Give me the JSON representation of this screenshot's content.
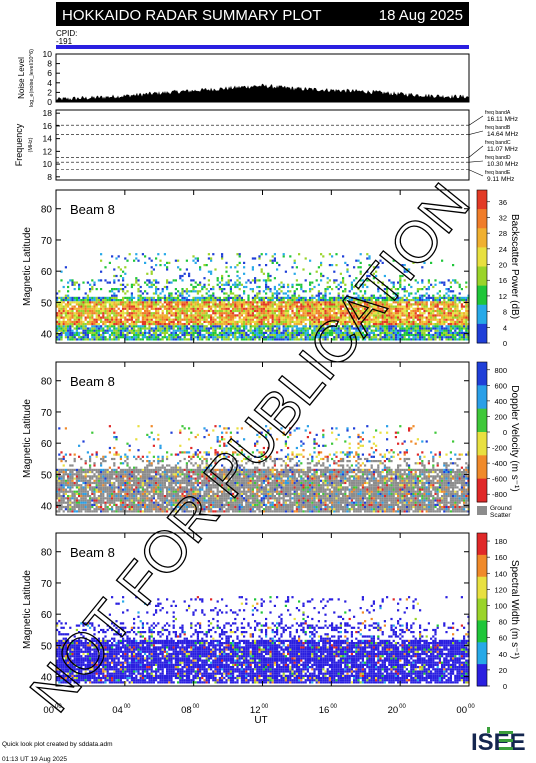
{
  "header": {
    "title": "HOKKAIDO RADAR SUMMARY PLOT",
    "date": "18 Aug 2025",
    "cpid_label": "CPID:",
    "cpid_value": "-191"
  },
  "noise_panel": {
    "ylabel": "Noise Level",
    "ylabel_sub": "log_e(noise_level/10^6)",
    "yticks": [
      "0",
      "2",
      "4",
      "6",
      "8",
      "10"
    ],
    "ylim": [
      0,
      10
    ]
  },
  "freq_panel": {
    "ylabel": "Frequency",
    "ylabel_sub": "(MHz)",
    "yticks": [
      "8",
      "10",
      "12",
      "14",
      "16",
      "18"
    ],
    "ylim": [
      7.5,
      18.5
    ],
    "bands": [
      {
        "label": "freq bandA",
        "value": "16.11 MHz",
        "freq": 16.11
      },
      {
        "label": "freq bandB",
        "value": "14.64 MHz",
        "freq": 14.64
      },
      {
        "label": "freq bandC",
        "value": "11.07 MHz",
        "freq": 11.07
      },
      {
        "label": "freq bandD",
        "value": "10.30 MHz",
        "freq": 10.3
      },
      {
        "label": "freq bandE",
        "value": "9.11 MHz",
        "freq": 9.11
      }
    ]
  },
  "panels": [
    {
      "beam_label": "Beam  8",
      "ylabel": "Magnetic Latitude",
      "yticks": [
        "40",
        "50",
        "60",
        "70",
        "80"
      ],
      "ylim": [
        37,
        86
      ],
      "cbar_label": "Backscatter Power (dB)",
      "cbar_ticks": [
        "0",
        "4",
        "8",
        "12",
        "16",
        "20",
        "24",
        "28",
        "32",
        "36"
      ],
      "cbar_range": [
        0,
        39
      ],
      "colors": [
        "#1f3fd8",
        "#27a9e8",
        "#1fc63a",
        "#9ad42a",
        "#e8e040",
        "#f0b030",
        "#f07d2a",
        "#e23a25"
      ]
    },
    {
      "beam_label": "Beam  8",
      "ylabel": "Magnetic Latitude",
      "yticks": [
        "40",
        "50",
        "60",
        "70",
        "80"
      ],
      "ylim": [
        37,
        86
      ],
      "cbar_label": "Doppler Velocity (m s⁻¹)",
      "cbar_ticks": [
        "800",
        "600",
        "400",
        "200",
        "0",
        "-200",
        "-400",
        "-600",
        "-800"
      ],
      "cbar_range": [
        -900,
        900
      ],
      "ground_label": "Ground",
      "scatter_label": "Scatter",
      "ground_color": "#8c8c8c",
      "colors": [
        "#e02828",
        "#f08a2a",
        "#e8e040",
        "#3fc83a",
        "#2a9fe8",
        "#1f3fd8"
      ]
    },
    {
      "beam_label": "Beam  8",
      "ylabel": "Magnetic Latitude",
      "yticks": [
        "40",
        "50",
        "60",
        "70",
        "80"
      ],
      "ylim": [
        37,
        86
      ],
      "cbar_label": "Spectral Width (m s⁻¹)",
      "cbar_ticks": [
        "0",
        "20",
        "40",
        "60",
        "80",
        "100",
        "120",
        "140",
        "160",
        "180"
      ],
      "cbar_range": [
        0,
        190
      ],
      "colors": [
        "#2a1fe0",
        "#27a9e8",
        "#1fc63a",
        "#9ad42a",
        "#e8e040",
        "#f08a2a",
        "#e02828"
      ]
    }
  ],
  "xaxis": {
    "ticks": [
      "00",
      "04",
      "08",
      "12",
      "16",
      "20",
      "00"
    ],
    "tick_sup": "00",
    "label": "UT",
    "range_hours": [
      0,
      24
    ]
  },
  "footer": {
    "credit": "Quick look plot created by sddata.adm",
    "timestamp": "01:13 UT 19 Aug 2025",
    "logo": "ISEE"
  },
  "watermark": "NOT FOR PUBLICATION",
  "chart_data": {
    "type": "heatmap",
    "noise_level": {
      "x_hours": [
        0,
        2,
        4,
        6,
        8,
        10,
        11,
        12,
        13,
        14,
        16,
        18,
        20,
        22,
        24
      ],
      "values": [
        0.5,
        0.8,
        1.2,
        1.8,
        2.3,
        2.8,
        3.1,
        3.3,
        3.0,
        2.7,
        2.4,
        2.1,
        1.6,
        1.2,
        1.0
      ]
    },
    "backscatter_band_lat_center": 47,
    "main_band_lat_range": [
      41,
      52
    ],
    "scatter_lat_range_max": 66
  }
}
